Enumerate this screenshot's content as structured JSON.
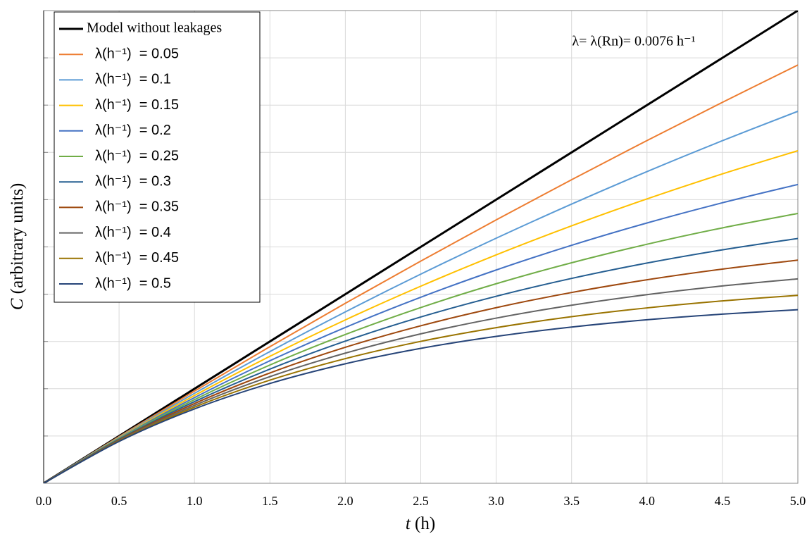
{
  "chart_data": {
    "type": "line",
    "annotation": "λ= λ(Rn)= 0.0076 h⁻¹",
    "xlabel": {
      "symbol": "t",
      "unit": "(h)"
    },
    "ylabel": {
      "symbol": "C",
      "unit": "(arbitrary units)"
    },
    "x": [
      0,
      0.5,
      1,
      1.5,
      2,
      2.5,
      3,
      3.5,
      4,
      4.5,
      5
    ],
    "xlim": [
      0,
      5
    ],
    "xticks": [
      {
        "value": 0,
        "label": "0.0"
      },
      {
        "value": 0.5,
        "label": "0.5"
      },
      {
        "value": 1,
        "label": "1.0"
      },
      {
        "value": 1.5,
        "label": "1.5"
      },
      {
        "value": 2,
        "label": "2.0"
      },
      {
        "value": 2.5,
        "label": "2.5"
      },
      {
        "value": 3,
        "label": "3.0"
      },
      {
        "value": 3.5,
        "label": "3.5"
      },
      {
        "value": 4,
        "label": "4.0"
      },
      {
        "value": 4.5,
        "label": "4.5"
      },
      {
        "value": 5,
        "label": "5.0"
      }
    ],
    "ylim": [
      0,
      10
    ],
    "yticks": [
      0,
      1,
      2,
      3,
      4,
      5,
      6,
      7,
      8,
      9,
      10
    ],
    "grid": true,
    "legend": "top-left",
    "series": [
      {
        "name": "Model without leakages",
        "color": "#000000",
        "values": [
          0,
          1,
          2,
          3,
          4,
          5,
          6,
          7,
          8,
          9,
          10
        ]
      },
      {
        "name": "λ(h⁻¹)  = 0.05",
        "color": "#ED7D31",
        "values": [
          0,
          0.988,
          1.951,
          2.89,
          3.807,
          4.7,
          5.572,
          6.422,
          7.251,
          8.059,
          8.848
        ]
      },
      {
        "name": "λ(h⁻¹)  = 0.1",
        "color": "#5B9BD5",
        "values": [
          0,
          0.975,
          1.903,
          2.786,
          3.625,
          4.424,
          5.184,
          5.906,
          6.594,
          7.247,
          7.869
        ]
      },
      {
        "name": "λ(h⁻¹)  = 0.15",
        "color": "#FFC000",
        "values": [
          0,
          0.963,
          1.857,
          2.686,
          3.456,
          4.169,
          4.832,
          5.446,
          6.016,
          6.545,
          7.035
        ]
      },
      {
        "name": "λ(h⁻¹)  = 0.2",
        "color": "#4472C4",
        "values": [
          0,
          0.952,
          1.813,
          2.592,
          3.297,
          3.935,
          4.512,
          5.034,
          5.507,
          5.934,
          6.321
        ]
      },
      {
        "name": "λ(h⁻¹)  = 0.25",
        "color": "#70AD47",
        "values": [
          0,
          0.94,
          1.77,
          2.502,
          3.148,
          3.718,
          4.221,
          4.665,
          5.057,
          5.403,
          5.708
        ]
      },
      {
        "name": "λ(h⁻¹)  = 0.3",
        "color": "#255E91",
        "values": [
          0,
          0.929,
          1.728,
          2.416,
          3.008,
          3.518,
          3.956,
          4.334,
          4.659,
          4.938,
          5.179
        ]
      },
      {
        "name": "λ(h⁻¹)  = 0.35",
        "color": "#9E480E",
        "values": [
          0,
          0.917,
          1.687,
          2.334,
          2.877,
          3.332,
          3.715,
          4.036,
          4.305,
          4.531,
          4.721
        ]
      },
      {
        "name": "λ(h⁻¹)  = 0.4",
        "color": "#636363",
        "values": [
          0,
          0.906,
          1.648,
          2.256,
          2.753,
          3.161,
          3.494,
          3.767,
          3.991,
          4.174,
          4.323
        ]
      },
      {
        "name": "λ(h⁻¹)  = 0.45",
        "color": "#997300",
        "values": [
          0,
          0.895,
          1.611,
          2.182,
          2.637,
          3.002,
          3.292,
          3.524,
          3.71,
          3.858,
          3.976
        ]
      },
      {
        "name": "λ(h⁻¹)  = 0.5",
        "color": "#264478",
        "values": [
          0,
          0.885,
          1.574,
          2.111,
          2.528,
          2.854,
          3.107,
          3.305,
          3.459,
          3.578,
          3.672
        ]
      }
    ]
  }
}
